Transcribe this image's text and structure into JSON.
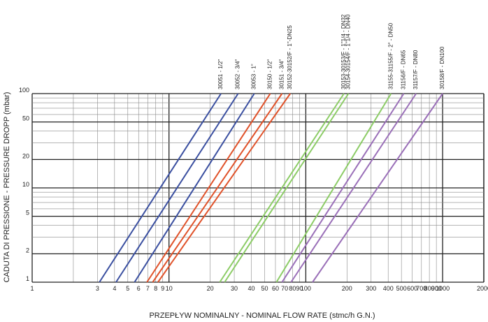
{
  "chart_data": {
    "type": "line",
    "x_scale": "log",
    "y_scale": "log",
    "xlim": [
      1,
      2000
    ],
    "ylim": [
      1,
      100
    ],
    "xlabel": "PRZEPŁYW NOMINALNY - NOMINAL FLOW RATE (stmc/h G.N.)",
    "ylabel": "CADUTA DI PRESSIONE - PRESSURE DROPP (mbar)",
    "x_ticks": [
      1,
      3,
      4,
      5,
      6,
      7,
      8,
      9,
      10,
      20,
      30,
      40,
      50,
      60,
      70,
      80,
      90,
      100,
      200,
      300,
      400,
      500,
      600,
      700,
      800,
      900,
      1000,
      2000
    ],
    "y_ticks": [
      1,
      2,
      5,
      10,
      20,
      50,
      100
    ],
    "grid": true,
    "colors": {
      "blue": "#3a4fa0",
      "orange": "#e0522a",
      "green": "#8ccc66",
      "purple": "#9a6fb8"
    },
    "series": [
      {
        "name": "30051 - 1/2\"",
        "color": "blue",
        "x": [
          3.1,
          24
        ],
        "y": [
          1,
          100
        ]
      },
      {
        "name": "30052 - 3/4\"",
        "color": "blue",
        "x": [
          4.1,
          32
        ],
        "y": [
          1,
          100
        ]
      },
      {
        "name": "30053 - 1\"",
        "color": "blue",
        "x": [
          5.6,
          42
        ],
        "y": [
          1,
          100
        ]
      },
      {
        "name": "30150 - 1/2\"",
        "color": "orange",
        "x": [
          6.9,
          55
        ],
        "y": [
          1,
          100
        ]
      },
      {
        "name": "30151 - 3/4\"",
        "color": "orange",
        "x": [
          7.6,
          67
        ],
        "y": [
          1,
          100
        ]
      },
      {
        "name": "30152-30152/F - 1\"-DN25",
        "color": "orange",
        "x": [
          8.3,
          77
        ],
        "y": [
          1,
          100
        ]
      },
      {
        "name": "30153-30153/F - 1\"1/4 - DN32",
        "color": "green",
        "x": [
          23.5,
          190
        ],
        "y": [
          1,
          100
        ]
      },
      {
        "name": "30154-30154/F - 1\"1/4 - DN40",
        "color": "green",
        "x": [
          25.5,
          205
        ],
        "y": [
          1,
          100
        ]
      },
      {
        "name": "31155-31155/F - 2\" - DN50",
        "color": "green",
        "x": [
          61,
          420
        ],
        "y": [
          1,
          100
        ]
      },
      {
        "name": "31156/F - DN65",
        "color": "purple",
        "x": [
          67,
          520
        ],
        "y": [
          1,
          100
        ]
      },
      {
        "name": "31157/F - DN80",
        "color": "purple",
        "x": [
          78,
          640
        ],
        "y": [
          1,
          100
        ]
      },
      {
        "name": "30158/F - DN100",
        "color": "purple",
        "x": [
          112,
          1000
        ],
        "y": [
          1,
          100
        ]
      }
    ]
  }
}
